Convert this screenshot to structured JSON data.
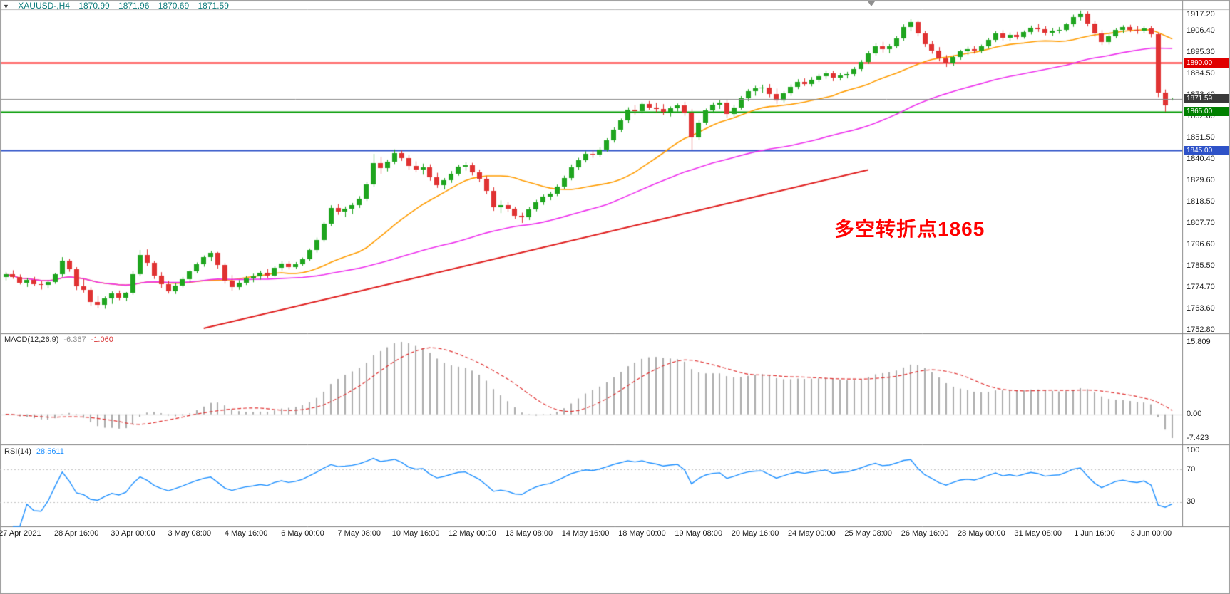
{
  "header": {
    "symbol": "XAUUSD-,H4",
    "open": "1870.99",
    "high": "1871.96",
    "low": "1870.69",
    "close": "1871.59"
  },
  "annotation": {
    "text": "多空转折点1865",
    "color": "#ff0000"
  },
  "price_axis": {
    "labels": [
      "1917.20",
      "1906.40",
      "1895.30",
      "1884.50",
      "1873.40",
      "1862.60",
      "1851.50",
      "1840.40",
      "1829.60",
      "1818.50",
      "1807.70",
      "1796.60",
      "1785.50",
      "1774.70",
      "1763.60",
      "1752.80"
    ]
  },
  "price_tags": [
    {
      "text": "1890.00",
      "price": 1890.0,
      "bg": "#e00000"
    },
    {
      "text": "1871.59",
      "price": 1871.59,
      "bg": "#3a3a3a"
    },
    {
      "text": "1865.00",
      "price": 1865.0,
      "bg": "#008000"
    },
    {
      "text": "1845.00",
      "price": 1845.0,
      "bg": "#2e52c8"
    }
  ],
  "time_axis": {
    "labels": [
      {
        "text": "27 Apr 2021",
        "bar": 2
      },
      {
        "text": "28 Apr 16:00",
        "bar": 10
      },
      {
        "text": "30 Apr 00:00",
        "bar": 18
      },
      {
        "text": "3 May 08:00",
        "bar": 26
      },
      {
        "text": "4 May 16:00",
        "bar": 34
      },
      {
        "text": "6 May 00:00",
        "bar": 42
      },
      {
        "text": "7 May 08:00",
        "bar": 50
      },
      {
        "text": "10 May 16:00",
        "bar": 58
      },
      {
        "text": "12 May 00:00",
        "bar": 66
      },
      {
        "text": "13 May 08:00",
        "bar": 74
      },
      {
        "text": "14 May 16:00",
        "bar": 82
      },
      {
        "text": "18 May 00:00",
        "bar": 90
      },
      {
        "text": "19 May 08:00",
        "bar": 98
      },
      {
        "text": "20 May 16:00",
        "bar": 106
      },
      {
        "text": "24 May 00:00",
        "bar": 114
      },
      {
        "text": "25 May 08:00",
        "bar": 122
      },
      {
        "text": "26 May 16:00",
        "bar": 130
      },
      {
        "text": "28 May 00:00",
        "bar": 138
      },
      {
        "text": "31 May 08:00",
        "bar": 146
      },
      {
        "text": "1 Jun 16:00",
        "bar": 154
      },
      {
        "text": "3 Jun 00:00",
        "bar": 162
      }
    ]
  },
  "macd_panel": {
    "label": "MACD(12,26,9)",
    "value_main": "-6.367",
    "value_signal": "-1.060",
    "axis_labels": {
      "max": "15.809",
      "zero": "0.00",
      "min": "-7.423"
    }
  },
  "rsi_panel": {
    "label": "RSI(14)",
    "value": "28.5611",
    "axis_labels": [
      "100",
      "70",
      "30"
    ]
  },
  "chart_data": {
    "type": "candlestick",
    "symbol": "XAUUSD-",
    "timeframe": "H4",
    "ylim": [
      1752.8,
      1917.2
    ],
    "up_color": "#1fa51f",
    "down_color": "#e03232",
    "hlines": [
      {
        "price": 1890.0,
        "color": "#ff0000",
        "width": 2
      },
      {
        "price": 1865.0,
        "color": "#009a00",
        "width": 2
      },
      {
        "price": 1845.0,
        "color": "#2e52c8",
        "width": 2
      }
    ],
    "current_price": {
      "price": 1871.59,
      "color": "#8a8a8a"
    },
    "trendline": {
      "from_bar": 28,
      "from_price": 1753.5,
      "to_bar": 122,
      "to_price": 1835.0,
      "color": "#e02020",
      "width": 2
    },
    "moving_averages": [
      {
        "period": 21,
        "color": "#ff9c00"
      },
      {
        "period": 55,
        "color": "#ee30ee"
      }
    ],
    "macd": {
      "fast": 12,
      "slow": 26,
      "signal_period": 9,
      "histogram_color": "#ababab",
      "signal_color": "#e03030"
    },
    "rsi": {
      "period": 14,
      "color": "#1e90ff",
      "levels": [
        70,
        30
      ]
    },
    "candles": [
      [
        1780.0,
        1782.5,
        1778.2,
        1781.3
      ],
      [
        1781.3,
        1783.4,
        1779.0,
        1779.8
      ],
      [
        1779.8,
        1781.2,
        1776.1,
        1777.0
      ],
      [
        1777.0,
        1779.5,
        1774.8,
        1778.6
      ],
      [
        1778.6,
        1780.0,
        1775.3,
        1776.2
      ],
      [
        1776.2,
        1777.8,
        1773.5,
        1775.9
      ],
      [
        1775.9,
        1778.3,
        1774.0,
        1777.5
      ],
      [
        1777.5,
        1782.0,
        1776.4,
        1781.2
      ],
      [
        1781.2,
        1790.1,
        1780.0,
        1788.4
      ],
      [
        1788.4,
        1789.3,
        1782.6,
        1784.1
      ],
      [
        1784.1,
        1785.0,
        1773.2,
        1775.3
      ],
      [
        1775.3,
        1778.8,
        1771.9,
        1773.4
      ],
      [
        1773.4,
        1774.6,
        1765.0,
        1767.2
      ],
      [
        1767.2,
        1770.3,
        1763.8,
        1765.5
      ],
      [
        1765.5,
        1769.9,
        1763.6,
        1768.8
      ],
      [
        1768.8,
        1772.5,
        1766.1,
        1771.6
      ],
      [
        1771.6,
        1773.0,
        1768.0,
        1769.4
      ],
      [
        1769.4,
        1772.2,
        1767.5,
        1771.8
      ],
      [
        1771.8,
        1783.0,
        1770.9,
        1781.5
      ],
      [
        1781.5,
        1793.8,
        1780.3,
        1791.2
      ],
      [
        1791.2,
        1794.1,
        1785.6,
        1787.3
      ],
      [
        1787.3,
        1788.2,
        1778.9,
        1780.6
      ],
      [
        1780.6,
        1782.4,
        1774.3,
        1776.1
      ],
      [
        1776.1,
        1778.0,
        1771.4,
        1772.5
      ],
      [
        1772.5,
        1776.8,
        1771.2,
        1775.4
      ],
      [
        1775.4,
        1779.9,
        1774.6,
        1778.8
      ],
      [
        1778.8,
        1783.5,
        1777.0,
        1782.7
      ],
      [
        1782.7,
        1787.4,
        1781.8,
        1786.6
      ],
      [
        1786.6,
        1791.0,
        1785.2,
        1790.1
      ],
      [
        1790.1,
        1793.4,
        1788.0,
        1792.2
      ],
      [
        1792.2,
        1792.8,
        1784.3,
        1786.0
      ],
      [
        1786.0,
        1787.1,
        1776.5,
        1778.2
      ],
      [
        1778.2,
        1780.9,
        1772.9,
        1774.6
      ],
      [
        1774.6,
        1778.3,
        1773.4,
        1777.0
      ],
      [
        1777.0,
        1780.5,
        1775.8,
        1779.3
      ],
      [
        1779.3,
        1781.6,
        1777.2,
        1780.4
      ],
      [
        1780.4,
        1783.2,
        1778.6,
        1782.1
      ],
      [
        1782.1,
        1784.0,
        1779.5,
        1780.8
      ],
      [
        1780.8,
        1785.5,
        1780.0,
        1784.7
      ],
      [
        1784.7,
        1788.1,
        1783.3,
        1786.9
      ],
      [
        1786.9,
        1788.0,
        1783.8,
        1785.2
      ],
      [
        1785.2,
        1787.6,
        1784.1,
        1786.4
      ],
      [
        1786.4,
        1789.9,
        1785.7,
        1789.0
      ],
      [
        1789.0,
        1794.6,
        1788.2,
        1793.8
      ],
      [
        1793.8,
        1800.2,
        1792.5,
        1799.1
      ],
      [
        1799.1,
        1808.4,
        1798.0,
        1807.2
      ],
      [
        1807.2,
        1816.8,
        1806.1,
        1815.3
      ],
      [
        1815.3,
        1817.4,
        1811.9,
        1813.6
      ],
      [
        1813.6,
        1816.2,
        1810.8,
        1814.9
      ],
      [
        1814.9,
        1818.0,
        1812.3,
        1816.7
      ],
      [
        1816.7,
        1821.5,
        1815.4,
        1820.3
      ],
      [
        1820.3,
        1828.9,
        1819.0,
        1827.6
      ],
      [
        1827.6,
        1843.2,
        1826.4,
        1838.5
      ],
      [
        1838.5,
        1841.7,
        1833.0,
        1835.8
      ],
      [
        1835.8,
        1840.3,
        1834.2,
        1839.1
      ],
      [
        1839.1,
        1845.5,
        1838.0,
        1843.7
      ],
      [
        1843.7,
        1844.9,
        1839.6,
        1841.2
      ],
      [
        1841.2,
        1842.6,
        1835.1,
        1836.9
      ],
      [
        1836.9,
        1839.4,
        1833.8,
        1835.0
      ],
      [
        1835.0,
        1838.2,
        1832.5,
        1836.3
      ],
      [
        1836.3,
        1837.9,
        1829.4,
        1831.0
      ],
      [
        1831.0,
        1833.5,
        1825.7,
        1827.2
      ],
      [
        1827.2,
        1830.8,
        1824.9,
        1829.6
      ],
      [
        1829.6,
        1834.4,
        1828.3,
        1833.1
      ],
      [
        1833.1,
        1837.7,
        1832.0,
        1836.5
      ],
      [
        1836.5,
        1838.9,
        1834.6,
        1837.4
      ],
      [
        1837.4,
        1838.6,
        1832.1,
        1833.9
      ],
      [
        1833.9,
        1835.2,
        1828.7,
        1830.4
      ],
      [
        1830.4,
        1831.8,
        1822.5,
        1824.1
      ],
      [
        1824.1,
        1826.0,
        1813.9,
        1815.6
      ],
      [
        1815.6,
        1819.3,
        1812.8,
        1817.0
      ],
      [
        1817.0,
        1818.4,
        1813.5,
        1815.2
      ],
      [
        1815.2,
        1816.1,
        1809.8,
        1811.4
      ],
      [
        1811.4,
        1813.0,
        1807.7,
        1810.6
      ],
      [
        1810.6,
        1815.9,
        1809.2,
        1814.8
      ],
      [
        1814.8,
        1819.6,
        1813.7,
        1818.5
      ],
      [
        1818.5,
        1822.3,
        1817.0,
        1821.1
      ],
      [
        1821.1,
        1823.8,
        1819.4,
        1822.6
      ],
      [
        1822.6,
        1827.4,
        1821.5,
        1826.3
      ],
      [
        1826.3,
        1832.0,
        1825.1,
        1830.9
      ],
      [
        1830.9,
        1837.8,
        1829.6,
        1836.4
      ],
      [
        1836.4,
        1841.2,
        1835.0,
        1840.1
      ],
      [
        1840.1,
        1844.6,
        1838.8,
        1843.3
      ],
      [
        1843.3,
        1845.0,
        1841.2,
        1842.7
      ],
      [
        1842.7,
        1846.5,
        1841.8,
        1845.6
      ],
      [
        1845.6,
        1851.3,
        1844.4,
        1850.2
      ],
      [
        1850.2,
        1856.8,
        1849.0,
        1855.7
      ],
      [
        1855.7,
        1861.4,
        1854.3,
        1860.5
      ],
      [
        1860.5,
        1867.2,
        1859.1,
        1866.0
      ],
      [
        1866.0,
        1868.3,
        1863.5,
        1865.1
      ],
      [
        1865.1,
        1869.8,
        1864.0,
        1868.7
      ],
      [
        1868.7,
        1870.4,
        1865.9,
        1867.2
      ],
      [
        1867.2,
        1869.5,
        1864.7,
        1866.3
      ],
      [
        1866.3,
        1868.8,
        1863.2,
        1864.9
      ],
      [
        1864.9,
        1867.6,
        1862.4,
        1866.8
      ],
      [
        1866.8,
        1869.1,
        1865.0,
        1868.2
      ],
      [
        1868.2,
        1870.0,
        1862.8,
        1864.5
      ],
      [
        1864.5,
        1866.2,
        1845.2,
        1851.8
      ],
      [
        1851.8,
        1860.7,
        1850.4,
        1859.3
      ],
      [
        1859.3,
        1866.5,
        1858.1,
        1865.4
      ],
      [
        1865.4,
        1869.7,
        1864.2,
        1868.6
      ],
      [
        1868.6,
        1870.8,
        1866.3,
        1869.5
      ],
      [
        1869.5,
        1871.2,
        1861.9,
        1863.7
      ],
      [
        1863.7,
        1868.4,
        1862.5,
        1867.1
      ],
      [
        1867.1,
        1872.9,
        1866.0,
        1871.8
      ],
      [
        1871.8,
        1876.5,
        1870.4,
        1875.3
      ],
      [
        1875.3,
        1878.2,
        1873.1,
        1876.9
      ],
      [
        1876.9,
        1878.8,
        1874.6,
        1877.4
      ],
      [
        1877.4,
        1879.1,
        1872.3,
        1874.0
      ],
      [
        1874.0,
        1876.8,
        1868.9,
        1870.6
      ],
      [
        1870.6,
        1875.4,
        1869.7,
        1874.2
      ],
      [
        1874.2,
        1878.9,
        1873.0,
        1877.8
      ],
      [
        1877.8,
        1881.6,
        1876.5,
        1880.4
      ],
      [
        1880.4,
        1882.0,
        1878.1,
        1879.3
      ],
      [
        1879.3,
        1882.7,
        1877.9,
        1881.5
      ],
      [
        1881.5,
        1884.3,
        1880.2,
        1883.1
      ],
      [
        1883.1,
        1886.0,
        1881.8,
        1884.7
      ],
      [
        1884.7,
        1885.9,
        1880.6,
        1882.3
      ],
      [
        1882.3,
        1884.8,
        1880.9,
        1883.6
      ],
      [
        1883.6,
        1885.4,
        1882.0,
        1884.2
      ],
      [
        1884.2,
        1887.9,
        1883.1,
        1886.8
      ],
      [
        1886.8,
        1891.5,
        1885.6,
        1890.3
      ],
      [
        1890.3,
        1896.2,
        1889.4,
        1895.0
      ],
      [
        1895.0,
        1900.1,
        1893.8,
        1898.7
      ],
      [
        1898.7,
        1900.8,
        1895.3,
        1897.2
      ],
      [
        1897.2,
        1899.6,
        1894.9,
        1898.4
      ],
      [
        1898.4,
        1903.7,
        1897.5,
        1902.6
      ],
      [
        1902.6,
        1909.8,
        1901.4,
        1908.5
      ],
      [
        1908.5,
        1912.5,
        1906.2,
        1910.9
      ],
      [
        1910.9,
        1911.8,
        1903.6,
        1905.1
      ],
      [
        1905.1,
        1906.4,
        1898.2,
        1899.8
      ],
      [
        1899.8,
        1901.3,
        1894.7,
        1896.5
      ],
      [
        1896.5,
        1898.1,
        1890.8,
        1892.4
      ],
      [
        1892.4,
        1894.0,
        1887.9,
        1889.6
      ],
      [
        1889.6,
        1893.8,
        1888.5,
        1892.9
      ],
      [
        1892.9,
        1896.7,
        1891.6,
        1895.8
      ],
      [
        1895.8,
        1898.3,
        1894.1,
        1896.9
      ],
      [
        1896.9,
        1898.6,
        1894.8,
        1896.2
      ],
      [
        1896.2,
        1899.4,
        1895.0,
        1898.5
      ],
      [
        1898.5,
        1902.8,
        1897.3,
        1901.9
      ],
      [
        1901.9,
        1906.3,
        1900.7,
        1905.2
      ],
      [
        1905.2,
        1906.8,
        1901.5,
        1903.0
      ],
      [
        1903.0,
        1905.6,
        1901.2,
        1904.4
      ],
      [
        1904.4,
        1905.9,
        1902.1,
        1903.3
      ],
      [
        1903.3,
        1906.7,
        1902.4,
        1905.8
      ],
      [
        1905.8,
        1909.2,
        1904.6,
        1908.1
      ],
      [
        1908.1,
        1910.0,
        1905.9,
        1907.3
      ],
      [
        1907.3,
        1908.8,
        1904.2,
        1905.6
      ],
      [
        1905.6,
        1907.9,
        1903.8,
        1906.5
      ],
      [
        1906.5,
        1908.4,
        1905.0,
        1907.0
      ],
      [
        1907.0,
        1910.5,
        1906.1,
        1909.7
      ],
      [
        1909.7,
        1914.8,
        1908.5,
        1913.6
      ],
      [
        1913.6,
        1916.9,
        1911.8,
        1915.2
      ],
      [
        1915.2,
        1916.4,
        1908.7,
        1910.3
      ],
      [
        1910.3,
        1911.6,
        1903.4,
        1905.0
      ],
      [
        1905.0,
        1906.8,
        1899.2,
        1900.9
      ],
      [
        1900.9,
        1904.6,
        1899.5,
        1903.7
      ],
      [
        1903.7,
        1907.8,
        1902.6,
        1906.9
      ],
      [
        1906.9,
        1909.4,
        1905.2,
        1908.3
      ],
      [
        1908.3,
        1909.6,
        1905.8,
        1907.1
      ],
      [
        1907.1,
        1908.9,
        1904.9,
        1906.4
      ],
      [
        1906.4,
        1908.7,
        1905.3,
        1907.8
      ],
      [
        1907.8,
        1908.9,
        1903.1,
        1904.6
      ],
      [
        1904.6,
        1905.2,
        1872.4,
        1874.8
      ],
      [
        1874.8,
        1876.3,
        1864.9,
        1868.2
      ],
      [
        1871.0,
        1872.0,
        1870.7,
        1871.6
      ]
    ]
  }
}
